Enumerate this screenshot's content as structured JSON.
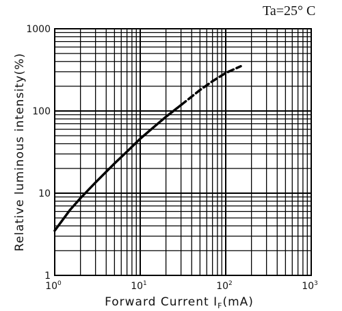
{
  "chart_data": {
    "type": "line",
    "xscale": "log",
    "yscale": "log",
    "xlim": [
      1,
      1000
    ],
    "ylim": [
      1,
      1000
    ],
    "grid": true,
    "ylabel": "Relative luminous intensity(%)",
    "xlabel_main": "Forward Current I",
    "xlabel_sub": "F",
    "xlabel_unit": "(mA)",
    "condition": "Ta=25° C",
    "y_ticks": [
      {
        "value": 1,
        "label": "1"
      },
      {
        "value": 10,
        "label": "10"
      },
      {
        "value": 100,
        "label": "100"
      },
      {
        "value": 1000,
        "label": "1000"
      }
    ],
    "x_ticks": [
      {
        "value": 1,
        "base": "10",
        "exp": "0"
      },
      {
        "value": 10,
        "base": "10",
        "exp": "1"
      },
      {
        "value": 100,
        "base": "10",
        "exp": "2"
      },
      {
        "value": 1000,
        "base": "10",
        "exp": "3"
      }
    ],
    "series": [
      {
        "style": "solid",
        "points": [
          [
            1,
            3.5
          ],
          [
            1.5,
            6.2
          ],
          [
            2,
            8.7
          ],
          [
            3,
            13.5
          ],
          [
            5,
            23
          ],
          [
            7,
            32
          ],
          [
            10,
            46
          ],
          [
            15,
            66
          ],
          [
            20,
            85
          ],
          [
            30,
            118
          ]
        ]
      },
      {
        "style": "dashed",
        "points": [
          [
            30,
            118
          ],
          [
            50,
            180
          ],
          [
            70,
            230
          ],
          [
            100,
            290
          ],
          [
            150,
            350
          ]
        ]
      }
    ]
  }
}
